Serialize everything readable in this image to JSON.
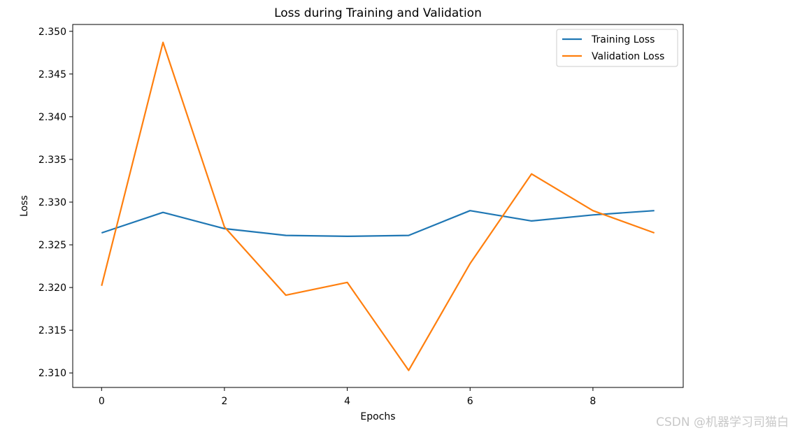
{
  "chart_data": {
    "type": "line",
    "title": "Loss during Training and Validation",
    "xlabel": "Epochs",
    "ylabel": "Loss",
    "x": [
      0,
      1,
      2,
      3,
      4,
      5,
      6,
      7,
      8,
      9
    ],
    "xlim": [
      -0.47,
      9.47
    ],
    "ylim": [
      2.3083,
      2.3508
    ],
    "xticks": [
      0,
      2,
      4,
      6,
      8
    ],
    "yticks": [
      2.31,
      2.315,
      2.32,
      2.325,
      2.33,
      2.335,
      2.34,
      2.345,
      2.35
    ],
    "ytick_labels": [
      "2.310",
      "2.315",
      "2.320",
      "2.325",
      "2.330",
      "2.335",
      "2.340",
      "2.345",
      "2.350"
    ],
    "grid": false,
    "legend_position": "top-right",
    "series": [
      {
        "name": "Training Loss",
        "color": "#1f77b4",
        "values": [
          2.3264,
          2.3288,
          2.3269,
          2.3261,
          2.326,
          2.3261,
          2.329,
          2.3278,
          2.3285,
          2.329
        ]
      },
      {
        "name": "Validation Loss",
        "color": "#ff7f0e",
        "values": [
          2.3202,
          2.3487,
          2.3271,
          2.3191,
          2.3206,
          2.3103,
          2.3228,
          2.3333,
          2.329,
          2.3264
        ]
      }
    ]
  },
  "watermark": "CSDN @机器学习司猫白"
}
